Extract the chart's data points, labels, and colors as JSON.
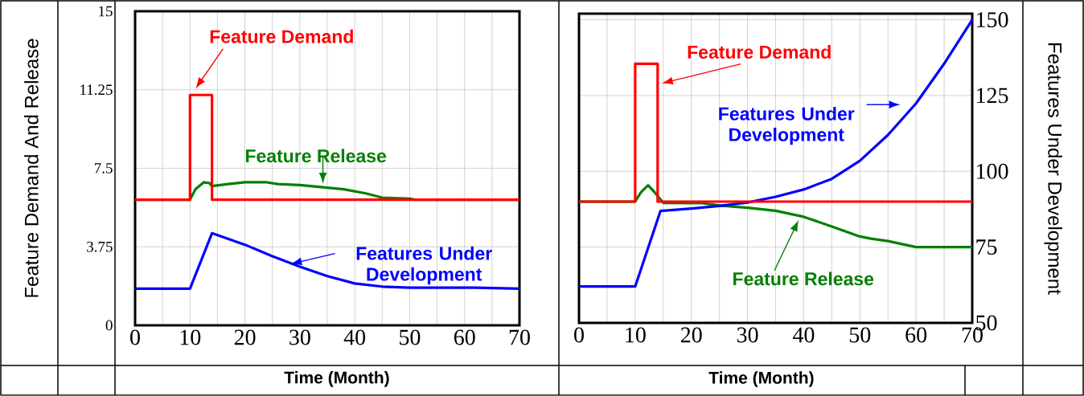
{
  "chart_data": [
    {
      "type": "line",
      "xlabel": "Time (Month)",
      "ylabel": "Feature Demand And Release",
      "xlim": [
        0,
        70
      ],
      "ylim": [
        0,
        15
      ],
      "xticks": [
        0,
        {
          "value": 5,
          "label": null
        },
        10,
        {
          "value": 15,
          "label": null
        },
        20,
        {
          "value": 25,
          "label": null
        },
        30,
        {
          "value": 35,
          "label": null
        },
        40,
        {
          "value": 45,
          "label": null
        },
        50,
        {
          "value": 55,
          "label": null
        },
        60,
        {
          "value": 65,
          "label": null
        },
        70
      ],
      "yticks": [
        0,
        3.75,
        7.5,
        11.25,
        15
      ],
      "grid": true,
      "series": [
        {
          "name": "Feature Demand",
          "color": "#ff0000",
          "x": [
            0,
            10,
            10,
            14,
            14,
            70
          ],
          "values": [
            6,
            6,
            11,
            11,
            6,
            6
          ]
        },
        {
          "name": "Feature Release",
          "color": "#008000",
          "x": [
            0,
            10,
            11,
            12.5,
            13.5,
            14,
            17,
            20,
            24,
            26,
            30,
            34,
            38,
            42,
            45,
            50,
            51,
            70
          ],
          "values": [
            6,
            6,
            6.5,
            6.83,
            6.8,
            6.65,
            6.75,
            6.83,
            6.83,
            6.75,
            6.7,
            6.6,
            6.5,
            6.3,
            6.1,
            6.05,
            6,
            6
          ]
        },
        {
          "name": "Features Under Development",
          "color": "#0000ff",
          "x": [
            0,
            10,
            14,
            20,
            25,
            30,
            35,
            40,
            45,
            50,
            55,
            62,
            70
          ],
          "values": [
            1.75,
            1.75,
            4.4,
            3.85,
            3.3,
            2.8,
            2.35,
            2.0,
            1.85,
            1.8,
            1.8,
            1.8,
            1.75
          ]
        }
      ]
    },
    {
      "type": "line",
      "xlabel": "Time (Month)",
      "y2label": "Features Under Development",
      "xlim": [
        0,
        70
      ],
      "y2lim": [
        50,
        152
      ],
      "xticks": [
        0,
        {
          "value": 5,
          "label": null
        },
        10,
        {
          "value": 15,
          "label": null
        },
        20,
        {
          "value": 25,
          "label": null
        },
        30,
        {
          "value": 35,
          "label": null
        },
        40,
        {
          "value": 45,
          "label": null
        },
        50,
        {
          "value": 55,
          "label": null
        },
        60,
        {
          "value": 65,
          "label": null
        },
        70
      ],
      "y2ticks": [
        50,
        75,
        100,
        125,
        150
      ],
      "grid": true,
      "series": [
        {
          "name": "Feature Demand",
          "color": "#ff0000",
          "axis": "y2",
          "x": [
            0,
            10,
            10,
            14,
            14,
            70
          ],
          "values": [
            90,
            90,
            135.5,
            135.5,
            90,
            90
          ]
        },
        {
          "name": "Features Under Development",
          "color": "#0000ff",
          "axis": "y2",
          "x": [
            0,
            10,
            14.5,
            20,
            25,
            30,
            35,
            40,
            45,
            50,
            55,
            60,
            65,
            70
          ],
          "values": [
            62,
            62,
            86.9,
            87.7,
            88.6,
            89.7,
            91.6,
            94,
            97.5,
            103.5,
            112,
            122.4,
            135.5,
            150
          ]
        },
        {
          "name": "Feature Release",
          "color": "#008000",
          "axis": "y2",
          "x": [
            0,
            10,
            11,
            12.3,
            13.5,
            15,
            22,
            25,
            30,
            35,
            40,
            45,
            50,
            52,
            55,
            60,
            70
          ],
          "values": [
            90,
            90,
            93,
            95.4,
            93,
            89.6,
            89.5,
            88.7,
            88,
            87,
            85,
            81.8,
            78.5,
            77.8,
            77,
            75,
            75
          ]
        }
      ]
    }
  ]
}
